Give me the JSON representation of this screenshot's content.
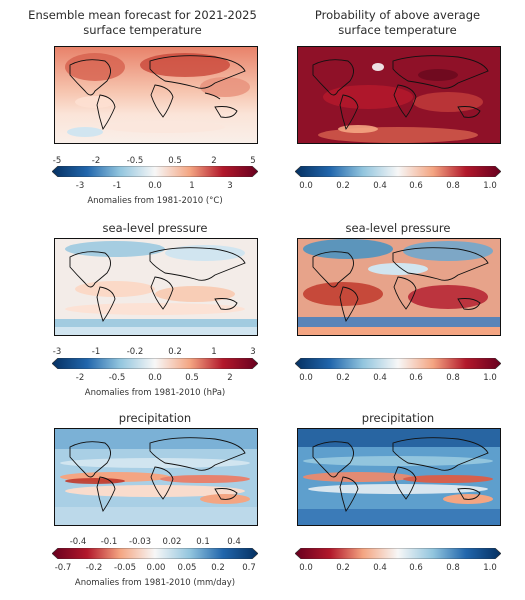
{
  "columns": {
    "left_title_line1": "Ensemble mean forecast for 2021-2025",
    "left_title_line2": "surface temperature",
    "right_title_line1": "Probability of above average",
    "right_title_line2": "surface temperature"
  },
  "panels": {
    "row2_left_title": "sea-level pressure",
    "row2_right_title": "sea-level pressure",
    "row3_left_title": "precipitation",
    "row3_right_title": "precipitation"
  },
  "colorbars": {
    "temp_anom": {
      "top_ticks": [
        "-5",
        "-2",
        "-0.5",
        "0.5",
        "2",
        "5"
      ],
      "bottom_ticks": [
        "-3",
        "-1",
        "0.0",
        "1",
        "3"
      ],
      "label": "Anomalies from 1981-2010 (°C)"
    },
    "prob_temp": {
      "ticks": [
        "0.0",
        "0.2",
        "0.4",
        "0.6",
        "0.8",
        "1.0"
      ]
    },
    "slp_anom": {
      "top_ticks": [
        "-3",
        "-1",
        "-0.2",
        "0.2",
        "1",
        "3"
      ],
      "bottom_ticks": [
        "-2",
        "-0.5",
        "0.0",
        "0.5",
        "2"
      ],
      "label": "Anomalies from 1981-2010 (hPa)"
    },
    "prob_slp": {
      "ticks": [
        "0.0",
        "0.2",
        "0.4",
        "0.6",
        "0.8",
        "1.0"
      ]
    },
    "precip_anom": {
      "top_ticks": [
        "-0.4",
        "-0.1",
        "-0.03",
        "0.02",
        "0.1",
        "0.4"
      ],
      "bottom_ticks": [
        "-0.7",
        "-0.2",
        "-0.05",
        "0.00",
        "0.05",
        "0.2",
        "0.7"
      ],
      "label": "Anomalies from 1981-2010 (mm/day)"
    },
    "prob_precip": {
      "ticks": [
        "0.0",
        "0.2",
        "0.4",
        "0.6",
        "0.8",
        "1.0"
      ]
    }
  },
  "colors": {
    "deep_red": "#67001f",
    "red": "#c0392b",
    "light_red": "#f4a582",
    "white": "#f7f7f7",
    "light_blue": "#92c5de",
    "blue": "#2166ac",
    "deep_blue": "#053061"
  }
}
